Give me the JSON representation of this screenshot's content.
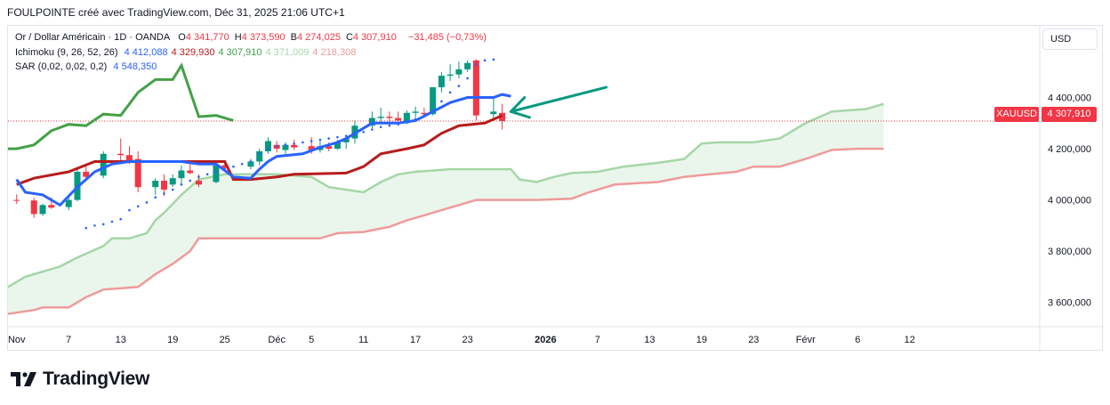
{
  "header": {
    "caption": "FOULPOINTE créé avec TradingView.com, Déc 31, 2025 21:06 UTC+1"
  },
  "legend": {
    "symbol_title": "Or / Dollar Américain · 1D · OANDA",
    "ohlc": [
      {
        "key": "O",
        "value": "4 341,770"
      },
      {
        "key": "H",
        "value": "4 373,590"
      },
      {
        "key": "B",
        "value": "4 274,025"
      },
      {
        "key": "C",
        "value": "4 307,910"
      }
    ],
    "change": "−31,485 (−0,73%)",
    "ichimoku": {
      "label": "Ichimoku (9, 26, 52, 26)",
      "values": [
        "4 412,088",
        "4 329,930",
        "4 307,910",
        "4 371,009",
        "4 218,308"
      ],
      "colors": [
        "#2962ff",
        "#b71c1c",
        "#43a047",
        "#a5d6a7",
        "#ef9a9a"
      ]
    },
    "sar": {
      "label": "SAR (0,02, 0,02, 0,2)",
      "value": "4 548,350",
      "color": "#2962ff"
    }
  },
  "currency_button": "USD",
  "price_tag": {
    "symbol": "XAUUSD",
    "value": "4 307,910"
  },
  "footer": {
    "brand": "TradingView"
  },
  "chart_data": {
    "type": "candlestick",
    "x_tick_labels": [
      "Nov",
      "7",
      "13",
      "19",
      "25",
      "Déc",
      "5",
      "11",
      "17",
      "23",
      "2026",
      "7",
      "13",
      "19",
      "23",
      "Févr",
      "6",
      "12"
    ],
    "y_tick_labels": [
      "4 400,000",
      "4 200,000",
      "4 000,000",
      "3 800,000",
      "3 600,000"
    ],
    "y_ticks": [
      4400,
      4200,
      4000,
      3800,
      3600
    ],
    "ylim": [
      3505,
      4680
    ],
    "x_tick_days": [
      0,
      6,
      12,
      18,
      24,
      30,
      34,
      40,
      46,
      52,
      61,
      67,
      73,
      79,
      85,
      91,
      97,
      103
    ],
    "x_range_days": [
      -1,
      118
    ],
    "last_price": 4307.91,
    "colors": {
      "up": "#089981",
      "down": "#f23645",
      "tenkan": "#2962ff",
      "kijun": "#b71c1c",
      "chikou": "#43a047",
      "span_a": "#a5d6a7",
      "span_b": "#ef9a9a",
      "cloud": "#e8f5e9",
      "sar": "#2962ff",
      "arrow": "#089981"
    },
    "candles": [
      {
        "d": 0,
        "o": 4000,
        "h": 4022,
        "l": 3985,
        "c": 3998
      },
      {
        "d": 2,
        "o": 3998,
        "h": 4010,
        "l": 3930,
        "c": 3945
      },
      {
        "d": 3,
        "o": 3945,
        "h": 3985,
        "l": 3938,
        "c": 3980
      },
      {
        "d": 4,
        "o": 3980,
        "h": 4010,
        "l": 3965,
        "c": 3970
      },
      {
        "d": 6,
        "o": 3972,
        "h": 4020,
        "l": 3960,
        "c": 4000
      },
      {
        "d": 7,
        "o": 4000,
        "h": 4120,
        "l": 3995,
        "c": 4110
      },
      {
        "d": 8,
        "o": 4110,
        "h": 4135,
        "l": 4080,
        "c": 4090
      },
      {
        "d": 10,
        "o": 4095,
        "h": 4190,
        "l": 4085,
        "c": 4180
      },
      {
        "d": 12,
        "o": 4180,
        "h": 4240,
        "l": 4150,
        "c": 4175
      },
      {
        "d": 13,
        "o": 4175,
        "h": 4210,
        "l": 4140,
        "c": 4155
      },
      {
        "d": 14,
        "o": 4160,
        "h": 4190,
        "l": 4030,
        "c": 4050
      },
      {
        "d": 16,
        "o": 4050,
        "h": 4085,
        "l": 4020,
        "c": 4075
      },
      {
        "d": 17,
        "o": 4075,
        "h": 4100,
        "l": 4015,
        "c": 4040
      },
      {
        "d": 18,
        "o": 4060,
        "h": 4100,
        "l": 4050,
        "c": 4085
      },
      {
        "d": 19,
        "o": 4085,
        "h": 4135,
        "l": 4060,
        "c": 4115
      },
      {
        "d": 20,
        "o": 4115,
        "h": 4140,
        "l": 4100,
        "c": 4105
      },
      {
        "d": 21,
        "o": 4075,
        "h": 4100,
        "l": 4050,
        "c": 4060
      },
      {
        "d": 23,
        "o": 4070,
        "h": 4140,
        "l": 4065,
        "c": 4135
      },
      {
        "d": 24,
        "o": 4135,
        "h": 4150,
        "l": 4115,
        "c": 4125
      },
      {
        "d": 27,
        "o": 4130,
        "h": 4160,
        "l": 4120,
        "c": 4150
      },
      {
        "d": 28,
        "o": 4150,
        "h": 4200,
        "l": 4135,
        "c": 4190
      },
      {
        "d": 29,
        "o": 4190,
        "h": 4245,
        "l": 4180,
        "c": 4230
      },
      {
        "d": 30,
        "o": 4215,
        "h": 4230,
        "l": 4185,
        "c": 4200
      },
      {
        "d": 31,
        "o": 4195,
        "h": 4225,
        "l": 4180,
        "c": 4215
      },
      {
        "d": 32,
        "o": 4215,
        "h": 4235,
        "l": 4195,
        "c": 4205
      },
      {
        "d": 34,
        "o": 4210,
        "h": 4245,
        "l": 4180,
        "c": 4195
      },
      {
        "d": 35,
        "o": 4195,
        "h": 4230,
        "l": 4185,
        "c": 4210
      },
      {
        "d": 36,
        "o": 4210,
        "h": 4225,
        "l": 4190,
        "c": 4200
      },
      {
        "d": 37,
        "o": 4200,
        "h": 4235,
        "l": 4195,
        "c": 4225
      },
      {
        "d": 38,
        "o": 4225,
        "h": 4245,
        "l": 4200,
        "c": 4240
      },
      {
        "d": 39,
        "o": 4240,
        "h": 4310,
        "l": 4220,
        "c": 4290
      },
      {
        "d": 41,
        "o": 4290,
        "h": 4345,
        "l": 4280,
        "c": 4320
      },
      {
        "d": 42,
        "o": 4320,
        "h": 4360,
        "l": 4300,
        "c": 4325
      },
      {
        "d": 43,
        "o": 4325,
        "h": 4345,
        "l": 4290,
        "c": 4320
      },
      {
        "d": 44,
        "o": 4320,
        "h": 4345,
        "l": 4305,
        "c": 4310
      },
      {
        "d": 45,
        "o": 4300,
        "h": 4350,
        "l": 4295,
        "c": 4340
      },
      {
        "d": 46,
        "o": 4340,
        "h": 4365,
        "l": 4320,
        "c": 4345
      },
      {
        "d": 47,
        "o": 4340,
        "h": 4360,
        "l": 4320,
        "c": 4335
      },
      {
        "d": 48,
        "o": 4335,
        "h": 4440,
        "l": 4330,
        "c": 4440
      },
      {
        "d": 49,
        "o": 4440,
        "h": 4500,
        "l": 4420,
        "c": 4485
      },
      {
        "d": 50,
        "o": 4485,
        "h": 4530,
        "l": 4465,
        "c": 4490
      },
      {
        "d": 51,
        "o": 4490,
        "h": 4540,
        "l": 4475,
        "c": 4510
      },
      {
        "d": 52,
        "o": 4510,
        "h": 4545,
        "l": 4500,
        "c": 4535
      },
      {
        "d": 53,
        "o": 4545,
        "h": 4550,
        "l": 4310,
        "c": 4330
      },
      {
        "d": 55,
        "o": 4335,
        "h": 4400,
        "l": 4310,
        "c": 4345
      },
      {
        "d": 56,
        "o": 4340,
        "h": 4375,
        "l": 4275,
        "c": 4308
      }
    ],
    "tenkan": [
      [
        0,
        4080
      ],
      [
        1,
        4030
      ],
      [
        3,
        4020
      ],
      [
        5,
        3980
      ],
      [
        7,
        4050
      ],
      [
        9,
        4110
      ],
      [
        11,
        4140
      ],
      [
        13,
        4150
      ],
      [
        19,
        4150
      ],
      [
        21,
        4140
      ],
      [
        23,
        4140
      ],
      [
        25,
        4090
      ],
      [
        27,
        4085
      ],
      [
        28,
        4120
      ],
      [
        29,
        4150
      ],
      [
        30,
        4170
      ],
      [
        33,
        4180
      ],
      [
        35,
        4205
      ],
      [
        37,
        4225
      ],
      [
        38,
        4240
      ],
      [
        39,
        4260
      ],
      [
        41,
        4300
      ],
      [
        44,
        4300
      ],
      [
        46,
        4310
      ],
      [
        48,
        4345
      ],
      [
        50,
        4380
      ],
      [
        52,
        4400
      ],
      [
        55,
        4400
      ],
      [
        56,
        4412
      ],
      [
        57,
        4405
      ]
    ],
    "kijun": [
      [
        0,
        4060
      ],
      [
        2,
        4085
      ],
      [
        6,
        4110
      ],
      [
        9,
        4150
      ],
      [
        24,
        4150
      ],
      [
        25,
        4080
      ],
      [
        27,
        4080
      ],
      [
        30,
        4090
      ],
      [
        32,
        4100
      ],
      [
        38,
        4105
      ],
      [
        40,
        4130
      ],
      [
        42,
        4180
      ],
      [
        45,
        4200
      ],
      [
        47,
        4215
      ],
      [
        49,
        4260
      ],
      [
        51,
        4290
      ],
      [
        54,
        4300
      ],
      [
        56,
        4330
      ]
    ],
    "chikou": [
      [
        -1,
        4200
      ],
      [
        0,
        4200
      ],
      [
        2,
        4215
      ],
      [
        4,
        4270
      ],
      [
        6,
        4295
      ],
      [
        8,
        4290
      ],
      [
        10,
        4335
      ],
      [
        12,
        4330
      ],
      [
        14,
        4420
      ],
      [
        16,
        4470
      ],
      [
        18,
        4470
      ],
      [
        19,
        4525
      ],
      [
        21,
        4325
      ],
      [
        23,
        4330
      ],
      [
        25,
        4310
      ]
    ],
    "span_a": [
      [
        -1,
        3660
      ],
      [
        1,
        3700
      ],
      [
        3,
        3720
      ],
      [
        5,
        3740
      ],
      [
        7,
        3775
      ],
      [
        8,
        3790
      ],
      [
        10,
        3820
      ],
      [
        11,
        3850
      ],
      [
        13,
        3850
      ],
      [
        15,
        3870
      ],
      [
        16,
        3920
      ],
      [
        17,
        3950
      ],
      [
        19,
        4020
      ],
      [
        21,
        4080
      ],
      [
        24,
        4100
      ],
      [
        30,
        4100
      ],
      [
        34,
        4090
      ],
      [
        36,
        4050
      ],
      [
        40,
        4030
      ],
      [
        42,
        4070
      ],
      [
        44,
        4100
      ],
      [
        46,
        4110
      ],
      [
        50,
        4120
      ],
      [
        54,
        4120
      ],
      [
        57,
        4120
      ],
      [
        58,
        4080
      ],
      [
        60,
        4070
      ],
      [
        62,
        4090
      ],
      [
        64,
        4105
      ],
      [
        67,
        4110
      ],
      [
        70,
        4130
      ],
      [
        74,
        4145
      ],
      [
        77,
        4160
      ],
      [
        79,
        4220
      ],
      [
        81,
        4225
      ],
      [
        85,
        4225
      ],
      [
        88,
        4240
      ],
      [
        91,
        4300
      ],
      [
        94,
        4345
      ],
      [
        96,
        4350
      ],
      [
        98,
        4355
      ],
      [
        100,
        4375
      ]
    ],
    "span_b": [
      [
        -1,
        3555
      ],
      [
        2,
        3570
      ],
      [
        3,
        3580
      ],
      [
        6,
        3580
      ],
      [
        8,
        3620
      ],
      [
        10,
        3650
      ],
      [
        12,
        3655
      ],
      [
        14,
        3660
      ],
      [
        16,
        3710
      ],
      [
        18,
        3750
      ],
      [
        20,
        3800
      ],
      [
        21,
        3850
      ],
      [
        35,
        3850
      ],
      [
        37,
        3870
      ],
      [
        40,
        3875
      ],
      [
        43,
        3895
      ],
      [
        45,
        3920
      ],
      [
        47,
        3940
      ],
      [
        49,
        3960
      ],
      [
        51,
        3980
      ],
      [
        53,
        4000
      ],
      [
        60,
        4000
      ],
      [
        64,
        4005
      ],
      [
        66,
        4030
      ],
      [
        69,
        4060
      ],
      [
        74,
        4070
      ],
      [
        77,
        4090
      ],
      [
        80,
        4100
      ],
      [
        83,
        4110
      ],
      [
        85,
        4130
      ],
      [
        88,
        4130
      ],
      [
        91,
        4160
      ],
      [
        94,
        4195
      ],
      [
        97,
        4200
      ],
      [
        100,
        4200
      ]
    ],
    "sar": [
      [
        8,
        3890
      ],
      [
        9,
        3900
      ],
      [
        10,
        3905
      ],
      [
        11,
        3915
      ],
      [
        12,
        3925
      ],
      [
        13,
        3960
      ],
      [
        14,
        3975
      ],
      [
        15,
        3990
      ],
      [
        16,
        4010
      ],
      [
        17,
        4025
      ],
      [
        18,
        4040
      ],
      [
        19,
        4060
      ],
      [
        20,
        4075
      ],
      [
        21,
        4090
      ],
      [
        22,
        4100
      ],
      [
        23,
        4110
      ],
      [
        24,
        4120
      ],
      [
        25,
        4130
      ],
      [
        26,
        4140
      ],
      [
        27,
        4150
      ],
      [
        28,
        4180
      ],
      [
        29,
        4200
      ],
      [
        30,
        4210
      ],
      [
        31,
        4215
      ],
      [
        32,
        4220
      ],
      [
        33,
        4225
      ],
      [
        34,
        4230
      ],
      [
        35,
        4235
      ],
      [
        36,
        4240
      ],
      [
        37,
        4245
      ],
      [
        38,
        4250
      ],
      [
        39,
        4255
      ],
      [
        40,
        4265
      ],
      [
        41,
        4275
      ],
      [
        42,
        4285
      ],
      [
        43,
        4290
      ],
      [
        44,
        4295
      ],
      [
        45,
        4305
      ],
      [
        46,
        4315
      ],
      [
        47,
        4330
      ],
      [
        48,
        4350
      ],
      [
        49,
        4385
      ],
      [
        50,
        4420
      ],
      [
        51,
        4445
      ],
      [
        52,
        4475
      ],
      [
        53,
        4530
      ],
      [
        54,
        4545
      ],
      [
        55,
        4548
      ]
    ],
    "arrow": {
      "from": [
        68,
        4440
      ],
      "to": [
        57,
        4345
      ]
    }
  }
}
